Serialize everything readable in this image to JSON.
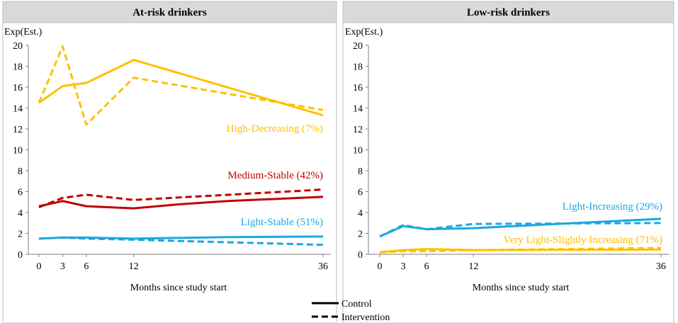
{
  "chart_data": [
    {
      "type": "line",
      "title": "At-risk drinkers",
      "ylabel": "Exp(Est.)",
      "xlabel": "Months since study start",
      "ylim": [
        0,
        20
      ],
      "xlim": [
        0,
        36
      ],
      "yticks": [
        0,
        2,
        4,
        6,
        8,
        10,
        12,
        14,
        16,
        18,
        20
      ],
      "xticks": [
        0,
        3,
        6,
        12,
        36
      ],
      "groups": [
        {
          "label": "High-Decreasing (7%)",
          "color": "#FFC000",
          "control": {
            "x": [
              0,
              3,
              6,
              12,
              36
            ],
            "y": [
              14.5,
              16.1,
              16.4,
              18.6,
              13.3
            ]
          },
          "intervention": {
            "x": [
              0,
              3,
              6,
              12,
              36
            ],
            "y": [
              14.5,
              19.9,
              12.4,
              16.9,
              13.8
            ]
          }
        },
        {
          "label": "Medium-Stable (42%)",
          "color": "#C00000",
          "control": {
            "x": [
              0,
              3,
              6,
              12,
              18,
              24,
              36
            ],
            "y": [
              4.6,
              5.1,
              4.6,
              4.4,
              4.8,
              5.1,
              5.5
            ]
          },
          "intervention": {
            "x": [
              0,
              3,
              6,
              12,
              36
            ],
            "y": [
              4.5,
              5.4,
              5.7,
              5.2,
              6.2
            ]
          }
        },
        {
          "label": "Light-Stable (51%)",
          "color": "#1CA7E0",
          "control": {
            "x": [
              0,
              3,
              6,
              12,
              24,
              36
            ],
            "y": [
              1.5,
              1.6,
              1.6,
              1.5,
              1.65,
              1.7
            ]
          },
          "intervention": {
            "x": [
              0,
              3,
              6,
              12,
              36
            ],
            "y": [
              1.5,
              1.6,
              1.5,
              1.4,
              0.9
            ]
          }
        }
      ]
    },
    {
      "type": "line",
      "title": "Low-risk drinkers",
      "ylabel": "Exp(Est.)",
      "xlabel": "Months since study start",
      "ylim": [
        0,
        20
      ],
      "xlim": [
        0,
        36
      ],
      "yticks": [
        0,
        2,
        4,
        6,
        8,
        10,
        12,
        14,
        16,
        18,
        20
      ],
      "xticks": [
        0,
        3,
        6,
        12,
        36
      ],
      "groups": [
        {
          "label": "Light-Increasing (29%)",
          "color": "#1CA7E0",
          "control": {
            "x": [
              0,
              3,
              6,
              12,
              36
            ],
            "y": [
              1.7,
              2.7,
              2.4,
              2.5,
              3.4
            ]
          },
          "intervention": {
            "x": [
              0,
              3,
              6,
              12,
              36
            ],
            "y": [
              1.7,
              2.8,
              2.4,
              2.9,
              3.0
            ]
          }
        },
        {
          "label": "Very Light-Slightly Increasing (71%)",
          "color": "#FFC000",
          "control": {
            "x": [
              0,
              3,
              6,
              12,
              36
            ],
            "y": [
              0.2,
              0.4,
              0.5,
              0.4,
              0.45
            ]
          },
          "intervention": {
            "x": [
              0,
              3,
              6,
              12,
              36
            ],
            "y": [
              0.2,
              0.3,
              0.3,
              0.4,
              0.6
            ]
          }
        }
      ]
    }
  ],
  "legend": {
    "entries": [
      {
        "label": "Control",
        "style": "solid"
      },
      {
        "label": "Intervention",
        "style": "dashed"
      }
    ]
  }
}
